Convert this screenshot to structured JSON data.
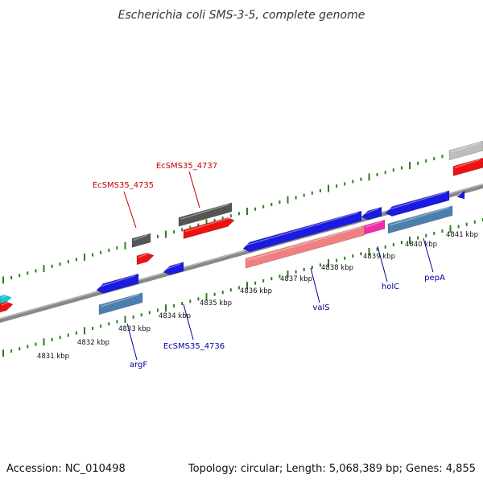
{
  "title": "Escherichia coli SMS-3-5, complete genome",
  "footer": {
    "accession": "Accession: NC_010498",
    "summary": "Topology: circular; Length: 5,068,389 bp; Genes: 4,855"
  },
  "scale_labels": [
    "4831 kbp",
    "4832 kbp",
    "4833 kbp",
    "4834 kbp",
    "4835 kbp",
    "4836 kbp",
    "4837 kbp",
    "4838 kbp",
    "4839 kbp",
    "4840 kbp",
    "4841 kbp"
  ],
  "gene_labels": {
    "EcSMS35_4737": "EcSMS35_4737",
    "EcSMS35_4735": "EcSMS35_4735",
    "EcSMS35_4736": "EcSMS35_4736",
    "argF": "argF",
    "valS": "valS",
    "holC": "holC",
    "pepA": "pepA"
  },
  "colors": {
    "forward_label": "#c00000",
    "reverse_label": "#00009a",
    "tick": "#2e7d1e",
    "backbone": "#8a8a8a",
    "cds_forward": "#ee1111",
    "cds_reverse": "#1a1ae0",
    "gene_dark": "#555555",
    "gene_light": "#bdbdbd",
    "gene_steel": "#4a7fb0",
    "gene_salmon": "#f08080",
    "gene_magenta": "#ee2faa",
    "gene_cyan": "#19c6d6"
  }
}
